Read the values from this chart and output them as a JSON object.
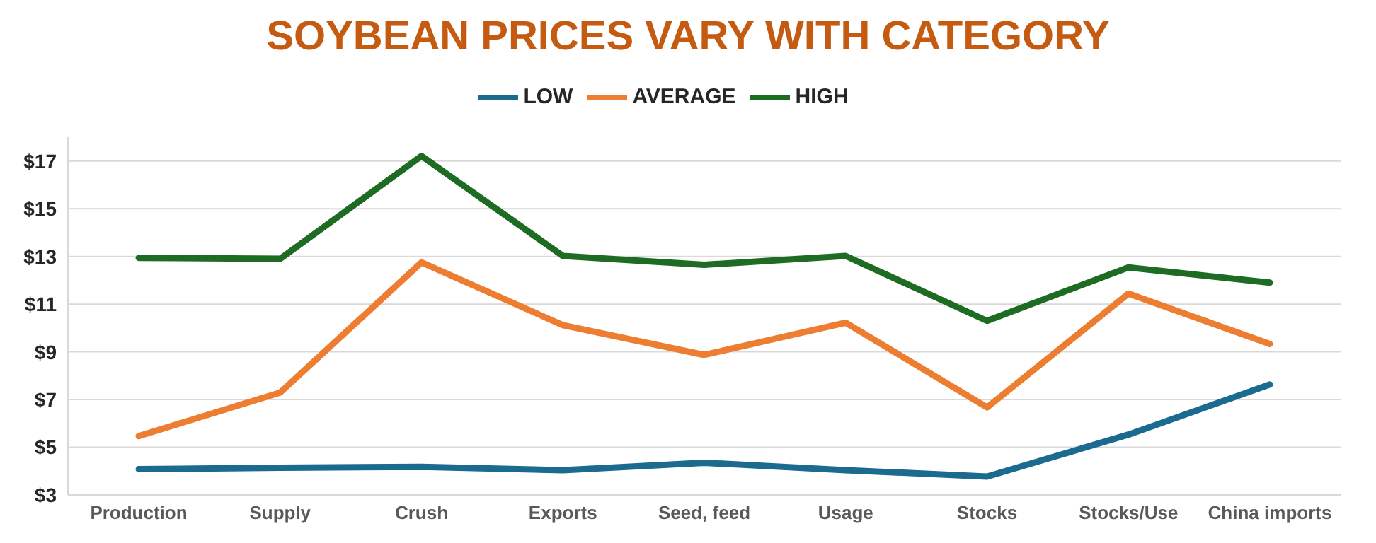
{
  "chart_data": {
    "type": "line",
    "title": "SOYBEAN PRICES VARY WITH CATEGORY",
    "categories": [
      "Production",
      "Supply",
      "Crush",
      "Exports",
      "Seed, feed",
      "Usage",
      "Stocks",
      "Stocks/Use",
      "China imports"
    ],
    "series": [
      {
        "name": "LOW",
        "color": "#1b6a8f",
        "values": [
          4.08,
          4.14,
          4.18,
          4.04,
          4.35,
          4.04,
          3.77,
          5.53,
          7.63
        ]
      },
      {
        "name": "AVERAGE",
        "color": "#ed7d31",
        "values": [
          5.47,
          7.29,
          12.75,
          10.12,
          8.87,
          10.22,
          6.67,
          11.44,
          9.33
        ]
      },
      {
        "name": "HIGH",
        "color": "#1e6b23",
        "values": [
          12.94,
          12.9,
          17.21,
          13.02,
          12.65,
          13.02,
          10.3,
          12.54,
          11.9
        ]
      }
    ],
    "ylim": [
      3,
      18
    ],
    "yticks": [
      {
        "value": 3,
        "label": "$3"
      },
      {
        "value": 5,
        "label": "$5"
      },
      {
        "value": 7,
        "label": "$7"
      },
      {
        "value": 9,
        "label": "$9"
      },
      {
        "value": 11,
        "label": "$11"
      },
      {
        "value": 13,
        "label": "$13"
      },
      {
        "value": 15,
        "label": "$15"
      },
      {
        "value": 17,
        "label": "$17"
      }
    ],
    "grid": "y",
    "legend": "top",
    "marker": "none",
    "line_style": "solid"
  }
}
